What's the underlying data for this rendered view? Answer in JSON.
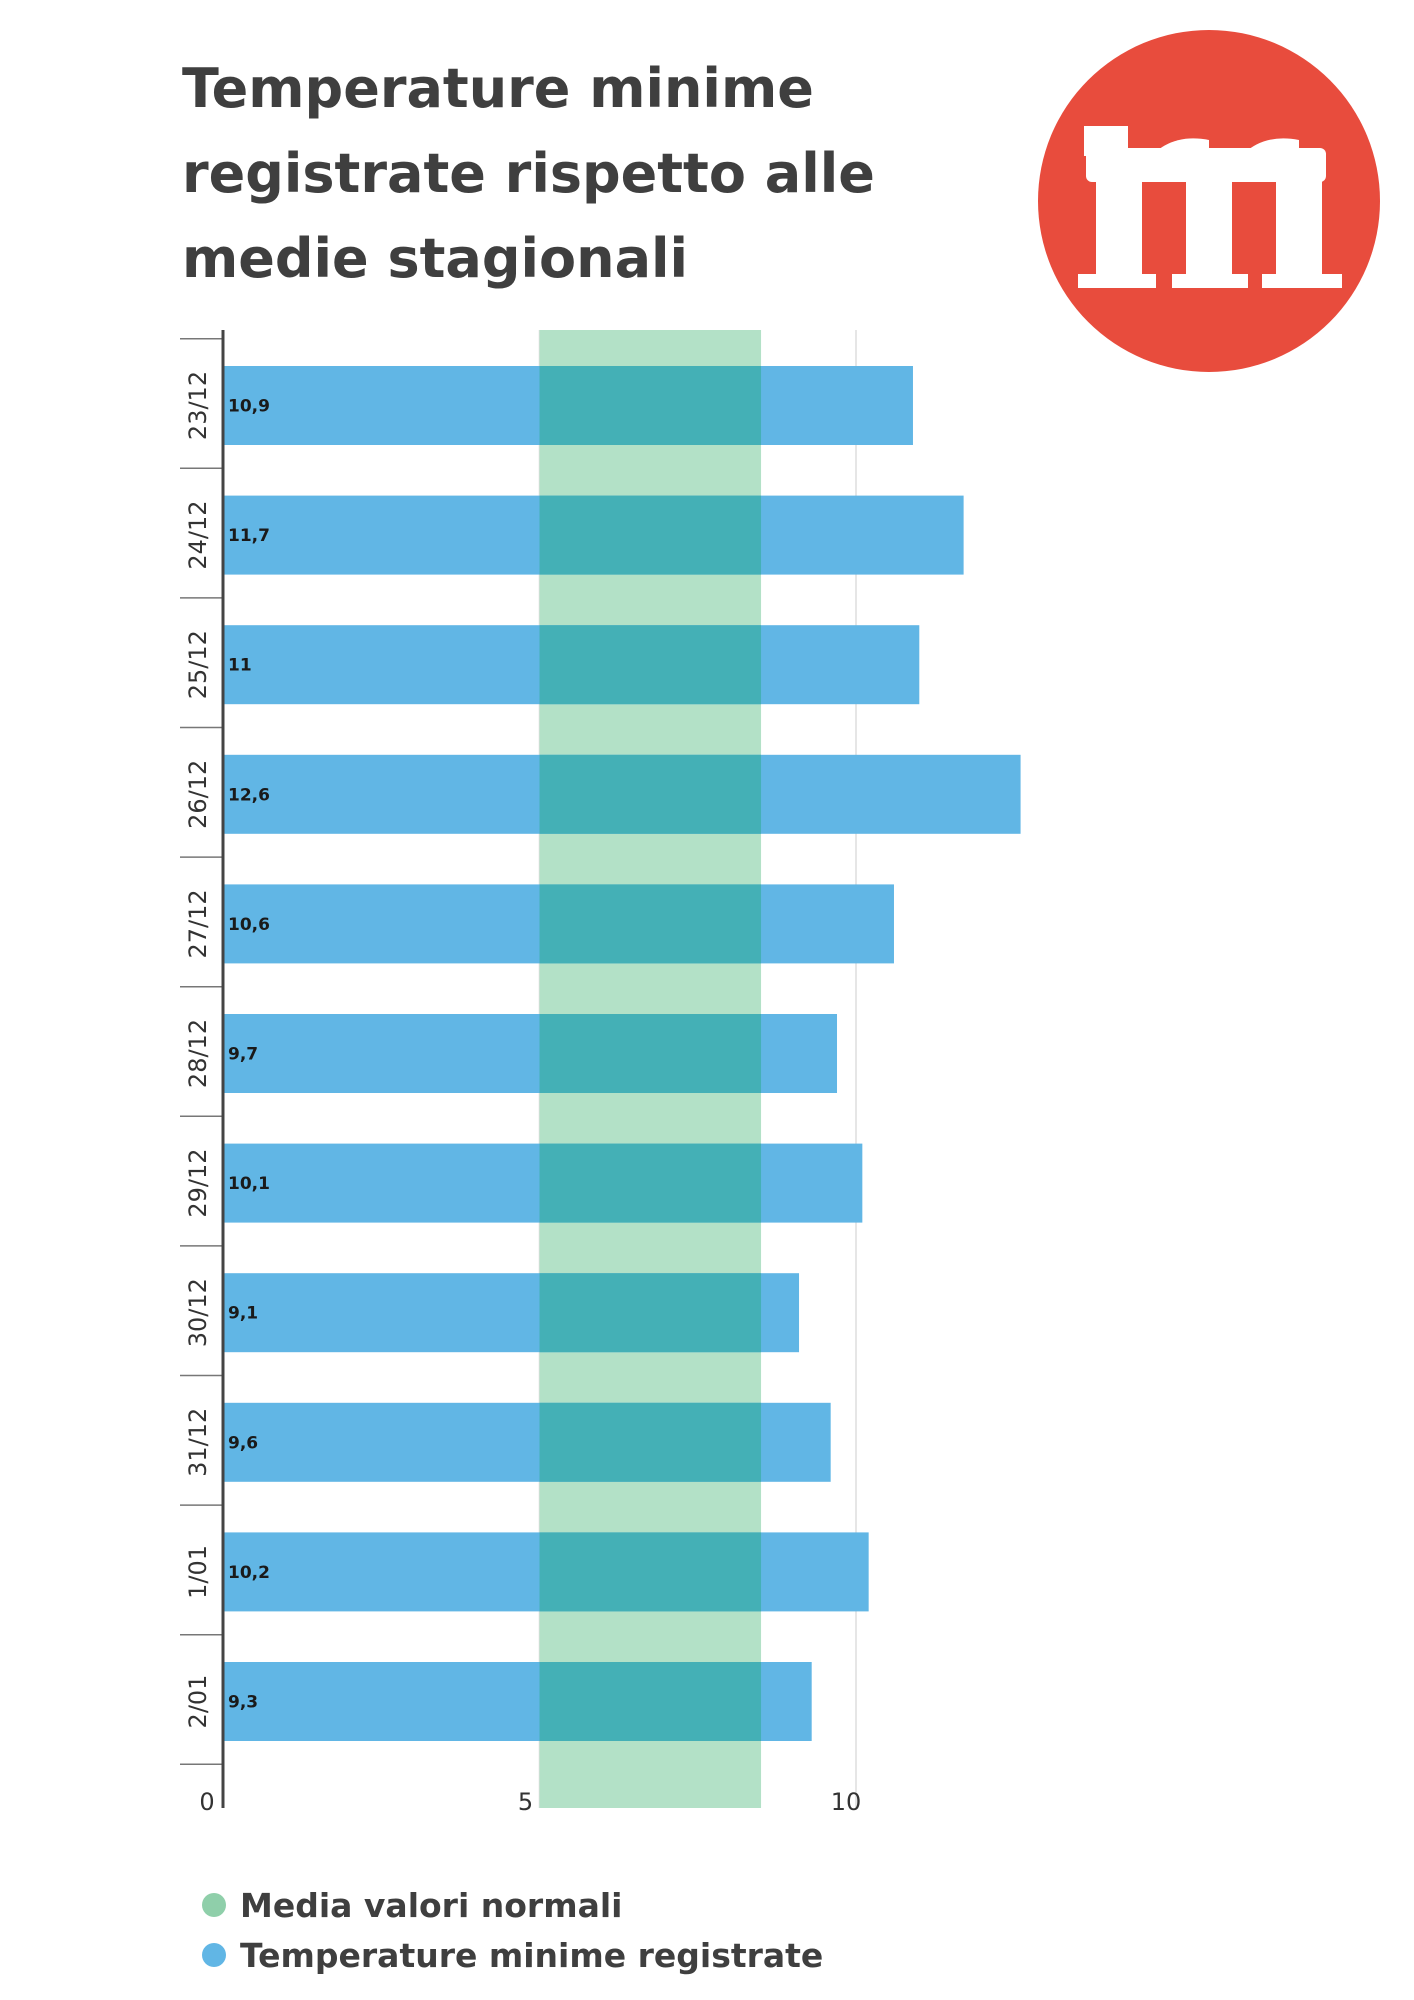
{
  "title": "Temperature minime registrate rispetto alle medie stagionali",
  "logo": {
    "letter": "m",
    "color": "#e84c3d"
  },
  "colors": {
    "bar": "#61b6e5",
    "band": "#b3e1c7",
    "overlap": "#44b0b6",
    "axis": "#444444",
    "text": "#333333"
  },
  "legend": [
    {
      "label": "Media valori normali",
      "color": "#8fcfaa"
    },
    {
      "label": "Temperature minime registrate",
      "color": "#61b6e5"
    }
  ],
  "chart_data": {
    "type": "bar",
    "orientation": "horizontal",
    "categories": [
      "23/12",
      "24/12",
      "25/12",
      "26/12",
      "27/12",
      "28/12",
      "29/12",
      "30/12",
      "31/12",
      "1/01",
      "2/01"
    ],
    "series": [
      {
        "name": "Temperature minime registrate",
        "values": [
          10.9,
          11.7,
          11,
          12.6,
          10.6,
          9.7,
          10.1,
          9.1,
          9.6,
          10.2,
          9.3
        ]
      }
    ],
    "data_labels": [
      "10,9",
      "11,7",
      "11",
      "12,6",
      "10,6",
      "9,7",
      "10,1",
      "9,1",
      "9,6",
      "10,2",
      "9,3"
    ],
    "band": {
      "name": "Media valori normali",
      "from": 5,
      "to": 8.5
    },
    "x_ticks": [
      0,
      5,
      10
    ],
    "x_tick_labels": [
      "0",
      "5",
      "10"
    ],
    "xlim": [
      0,
      13.5
    ],
    "grid": true,
    "legend_position": "bottom-left"
  }
}
